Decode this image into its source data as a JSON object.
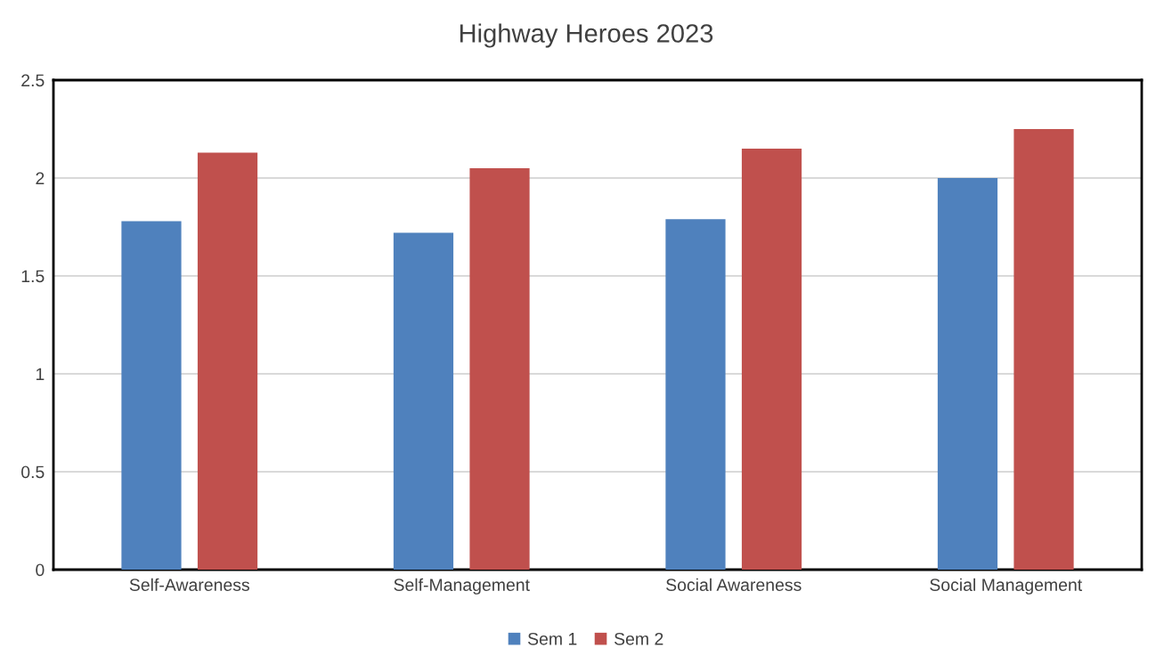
{
  "chart_data": {
    "type": "bar",
    "title": "Highway Heroes 2023",
    "categories": [
      "Self-Awareness",
      "Self-Management",
      "Social Awareness",
      "Social Management"
    ],
    "series": [
      {
        "name": "Sem 1",
        "color": "#4f81bd",
        "values": [
          1.78,
          1.72,
          1.79,
          2.0
        ]
      },
      {
        "name": "Sem 2",
        "color": "#c0504d",
        "values": [
          2.13,
          2.05,
          2.15,
          2.25
        ]
      }
    ],
    "ylim": [
      0,
      2.5
    ],
    "yticks": [
      0,
      0.5,
      1,
      1.5,
      2,
      2.5
    ],
    "grid": "y",
    "legend": "bottom"
  }
}
